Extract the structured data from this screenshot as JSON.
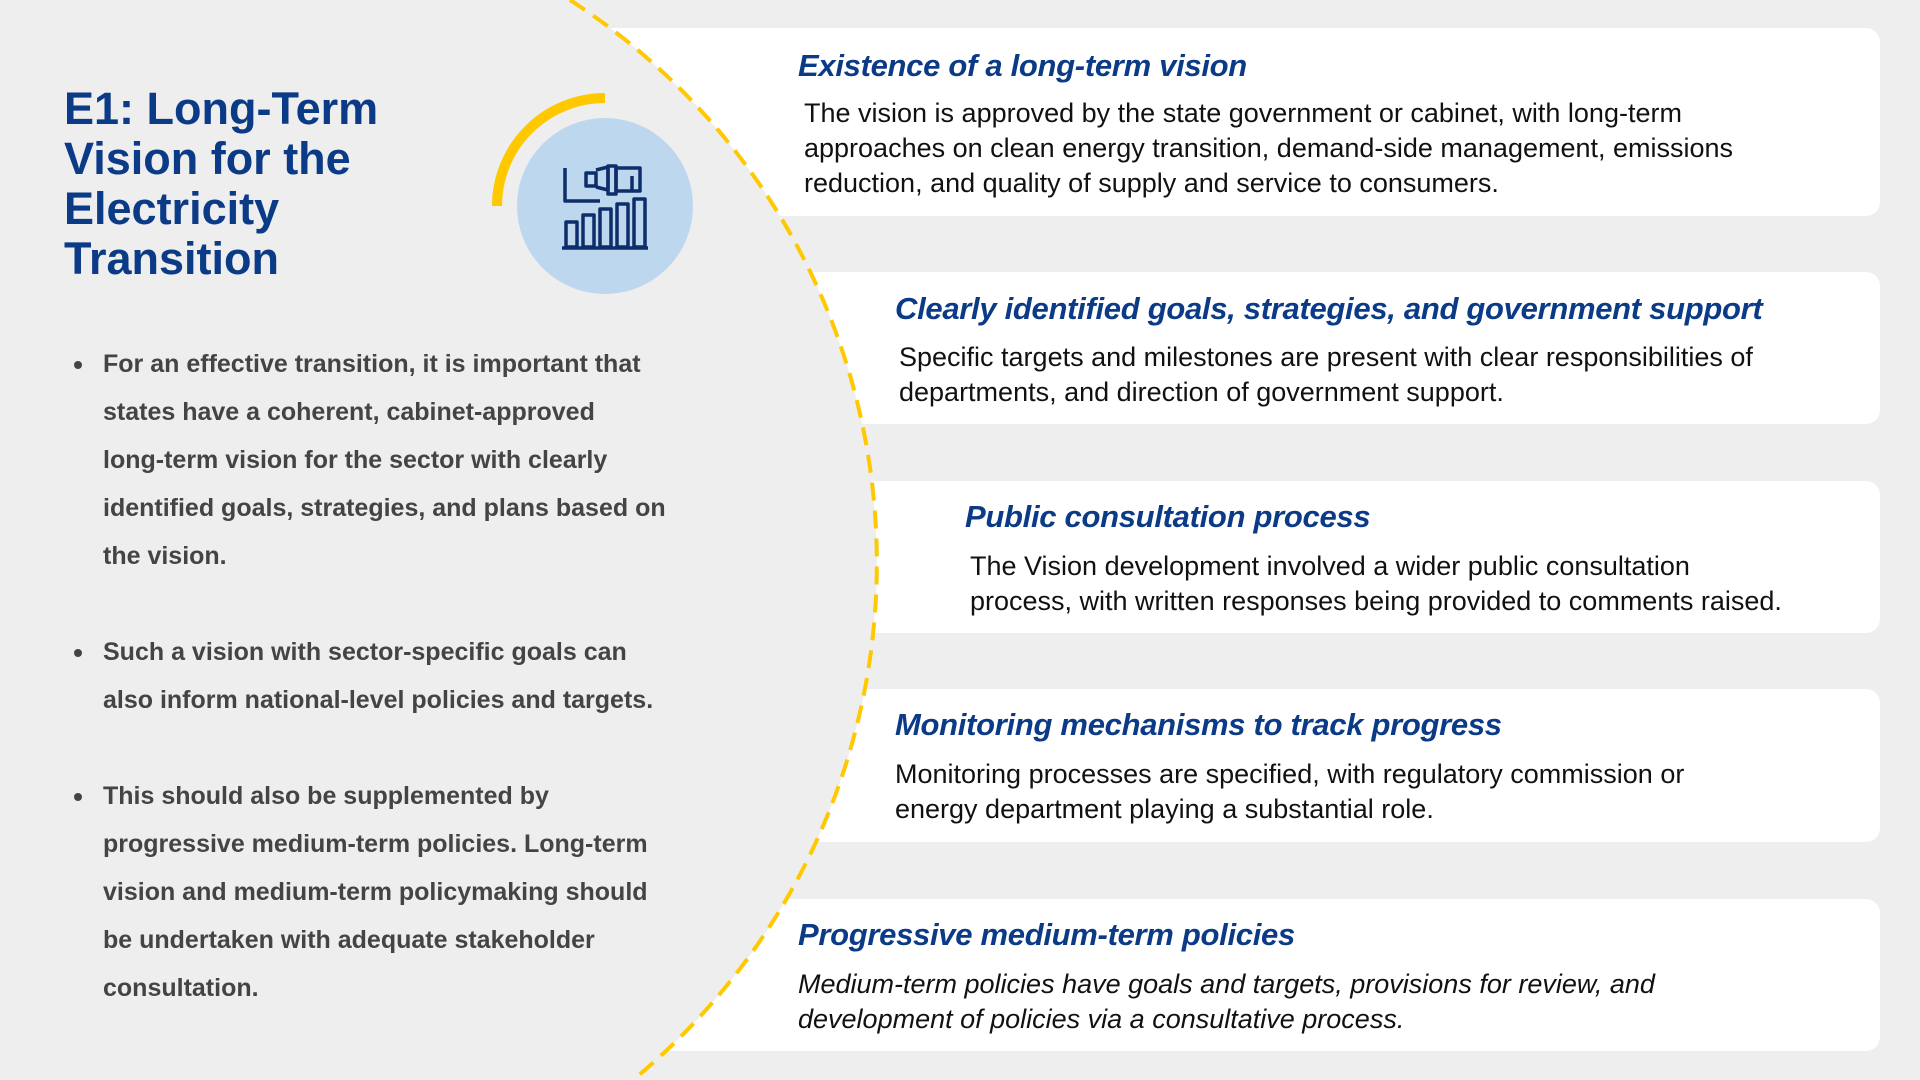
{
  "colors": {
    "accent_yellow": "#ffc800",
    "title_blue": "#0b3a86",
    "icon_circle": "#bdd7ee",
    "background": "#eeeeee"
  },
  "icon": "binoculars-bar-chart-icon",
  "title_lines": [
    "E1: Long-Term",
    "Vision for the",
    "Electricity",
    "Transition"
  ],
  "bullets": [
    {
      "lines": [
        "For an effective transition, it is important that",
        "states have a coherent, cabinet-approved",
        "long-term vision for the sector with clearly",
        "identified goals, strategies, and plans based on",
        "the vision."
      ]
    },
    {
      "lines": [
        "Such a vision with sector-specific goals can",
        "also inform national-level policies and targets."
      ]
    },
    {
      "lines": [
        "This should also be supplemented by",
        "progressive medium-term policies. Long-term",
        "vision and medium-term policymaking should",
        "be undertaken with adequate stakeholder",
        "consultation."
      ]
    }
  ],
  "cards": [
    {
      "title": "Existence of a long-term vision",
      "lines": [
        "The vision is approved by the state government or cabinet, with long-term",
        "approaches on clean energy transition, demand-side management, emissions",
        "reduction, and quality of supply and service to consumers."
      ]
    },
    {
      "title": "Clearly identified goals, strategies, and government support",
      "lines": [
        "Specific targets and milestones are present with clear responsibilities of",
        "departments, and direction of government support."
      ]
    },
    {
      "title": "Public consultation process",
      "lines": [
        "The Vision development involved a wider public consultation",
        "process, with written responses being provided to comments raised."
      ]
    },
    {
      "title": "Monitoring mechanisms to track progress",
      "lines": [
        "Monitoring processes are specified, with regulatory commission or",
        "energy department playing a substantial role."
      ]
    },
    {
      "title": "Progressive medium-term policies",
      "lines": [
        "Medium-term policies have goals and targets, provisions for review, and",
        "development of policies via a consultative process."
      ]
    }
  ]
}
